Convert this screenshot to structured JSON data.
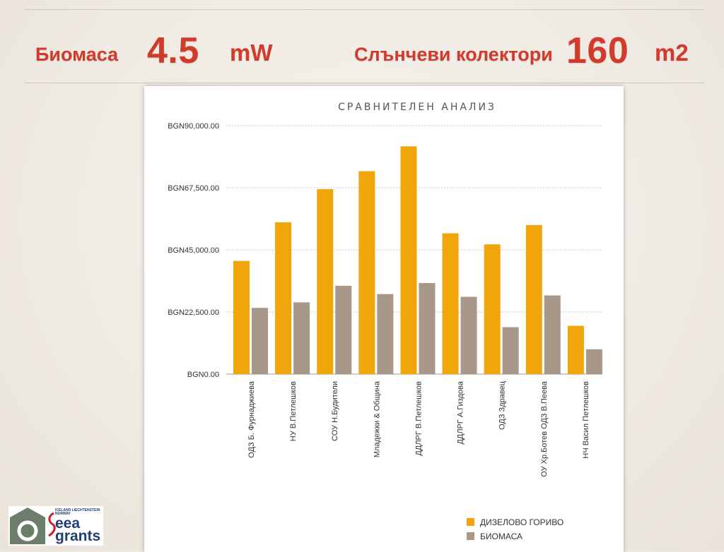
{
  "header": {
    "biomass_label": "Биомаса",
    "biomass_value": "4.5",
    "biomass_unit": "mW",
    "solar_label": "Слънчеви колектори",
    "solar_value": "160",
    "solar_unit": "m2"
  },
  "colors": {
    "accent_red": "#d23a2c",
    "diesel": "#f0a50a",
    "biomass": "#a8988a"
  },
  "chart_data": {
    "type": "bar",
    "title": "СРАВНИТЕЛЕН АНАЛИЗ",
    "categories": [
      "ОДЗ Б. Фурнаджиева",
      "НУ  В.Петлешков",
      "СОУ Н.Будители",
      "Младежки & Община",
      "ДДЛРГ В.Петлешков",
      "ДДЛРГ А.Гиздова",
      "ОДЗ Здравец",
      "ОУ Хр.Ботев ОДЗ В.Пеева",
      "НЧ Васил Петлешков"
    ],
    "series": [
      {
        "name": "ДИЗЕЛОВО ГОРИВО",
        "color": "#f0a50a",
        "values": [
          41000,
          55000,
          67000,
          73500,
          82500,
          51000,
          47000,
          54000,
          17500
        ]
      },
      {
        "name": "БИОМАСА",
        "color": "#a8988a",
        "values": [
          24000,
          26000,
          32000,
          29000,
          33000,
          28000,
          17000,
          28500,
          9000
        ]
      }
    ],
    "ylim": [
      0,
      90000
    ],
    "yticks": [
      0,
      22500,
      45000,
      67500,
      90000
    ],
    "ytick_labels": [
      "BGN0.00",
      "BGN22,500.00",
      "BGN45,000.00",
      "BGN67,500.00",
      "BGN90,000.00"
    ],
    "grid": true,
    "legend_position": "bottom-right"
  },
  "logo": {
    "eea_small": "ICELAND LIECHTENSTEIN NORWAY",
    "eea_line1": "eea",
    "eea_line2": "grants"
  }
}
